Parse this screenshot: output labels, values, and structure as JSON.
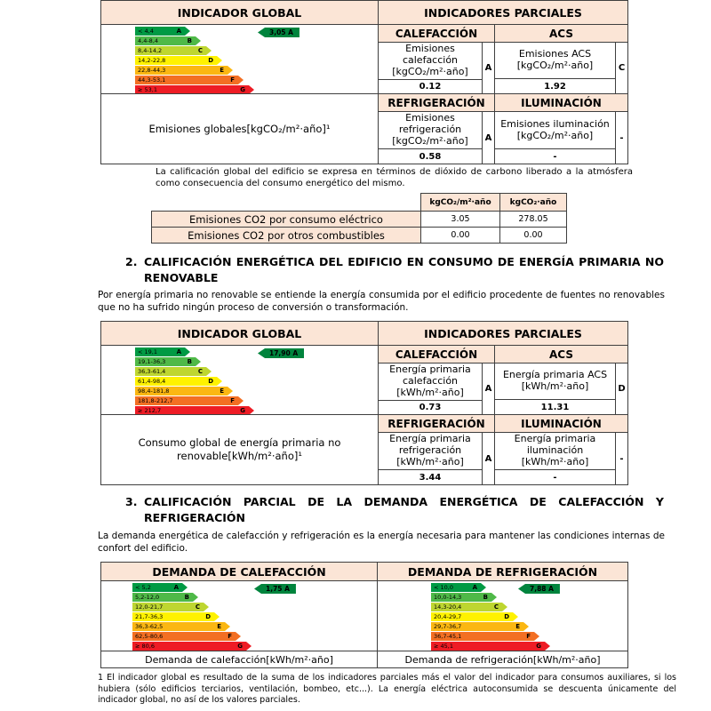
{
  "colors": {
    "header_bg": "#fbe5d6",
    "band_a": "#009a44",
    "band_b": "#4fb948",
    "band_c": "#bed630",
    "band_d": "#fff200",
    "band_e": "#fbb712",
    "band_f": "#f36f23",
    "band_g": "#ee1c25",
    "indicator_arrow": "#00843d",
    "border": "#3f3f3f"
  },
  "emissions": {
    "global_header": "INDICADOR GLOBAL",
    "partials_header": "INDICADORES PARCIALES",
    "indicator": "3,05 A",
    "scale": [
      {
        "range": "< 4,4",
        "letter": "A"
      },
      {
        "range": "4,4-8,4",
        "letter": "B"
      },
      {
        "range": "8,4-14,2",
        "letter": "C"
      },
      {
        "range": "14,2-22,8",
        "letter": "D"
      },
      {
        "range": "22,8-44,3",
        "letter": "E"
      },
      {
        "range": "44,3-53,1",
        "letter": "F"
      },
      {
        "range": "≥ 53,1",
        "letter": "G"
      }
    ],
    "partials": [
      {
        "header": "CALEFACCIÓN",
        "label": "Emisiones calefacción [kgCO₂/m²·año]",
        "letter": "A",
        "value": "0.12"
      },
      {
        "header": "ACS",
        "label": "Emisiones ACS [kgCO₂/m²·año]",
        "letter": "C",
        "value": "1.92"
      },
      {
        "header": "REFRIGERACIÓN",
        "label": "Emisiones refrigeración [kgCO₂/m²·año]",
        "letter": "A",
        "value": "0.58"
      },
      {
        "header": "ILUMINACIÓN",
        "label": "Emisiones iluminación [kgCO₂/m²·año]",
        "letter": "-",
        "value": "-"
      }
    ],
    "global_label": "Emisiones globales[kgCO₂/m²·año]¹",
    "note": "La calificación global del edificio se expresa en términos de dióxido de carbono liberado a la atmósfera como consecuencia del consumo energético del mismo.",
    "co2_table": {
      "col_headers": [
        "kgCO₂/m²·año",
        "kgCO₂·año"
      ],
      "rows": [
        {
          "label": "Emisiones CO2 por consumo eléctrico",
          "per_m2": "3.05",
          "per_year": "278.05"
        },
        {
          "label": "Emisiones CO2 por otros combustibles",
          "per_m2": "0.00",
          "per_year": "0.00"
        }
      ]
    }
  },
  "primary": {
    "section_number": "2.",
    "section_title": "CALIFICACIÓN ENERGÉTICA DEL EDIFICIO EN CONSUMO DE ENERGÍA PRIMARIA NO RENOVABLE",
    "intro": "Por energía primaria no renovable se entiende la energía consumida por el edificio procedente de fuentes no renovables que no ha sufrido ningún proceso de conversión o transformación.",
    "global_header": "INDICADOR GLOBAL",
    "partials_header": "INDICADORES PARCIALES",
    "indicator": "17,90 A",
    "scale": [
      {
        "range": "< 19,1",
        "letter": "A"
      },
      {
        "range": "19,1-36,3",
        "letter": "B"
      },
      {
        "range": "36,3-61,4",
        "letter": "C"
      },
      {
        "range": "61,4-98,4",
        "letter": "D"
      },
      {
        "range": "98,4-181,8",
        "letter": "E"
      },
      {
        "range": "181,8-212,7",
        "letter": "F"
      },
      {
        "range": "≥ 212,7",
        "letter": "G"
      }
    ],
    "partials": [
      {
        "header": "CALEFACCIÓN",
        "label": "Energía primaria calefacción [kWh/m²·año]",
        "letter": "A",
        "value": "0.73"
      },
      {
        "header": "ACS",
        "label": "Energía primaria ACS [kWh/m²·año]",
        "letter": "D",
        "value": "11.31"
      },
      {
        "header": "REFRIGERACIÓN",
        "label": "Energía primaria refrigeración [kWh/m²·año]",
        "letter": "A",
        "value": "3.44"
      },
      {
        "header": "ILUMINACIÓN",
        "label": "Energía primaria iluminación [kWh/m²·año]",
        "letter": "-",
        "value": "-"
      }
    ],
    "global_label": "Consumo global de energía primaria no renovable[kWh/m²·año]¹"
  },
  "demand": {
    "section_number": "3.",
    "section_title": "CALIFICACIÓN PARCIAL DE LA DEMANDA ENERGÉTICA DE CALEFACCIÓN Y REFRIGERACIÓN",
    "intro": "La demanda energética de calefacción y refrigeración es la energía necesaria para mantener las condiciones internas de confort del edificio.",
    "heating": {
      "header": "DEMANDA DE CALEFACCIÓN",
      "indicator": "1,75 A",
      "scale": [
        {
          "range": "< 5,2",
          "letter": "A"
        },
        {
          "range": "5,2-12,0",
          "letter": "B"
        },
        {
          "range": "12,0-21,7",
          "letter": "C"
        },
        {
          "range": "21,7-36,3",
          "letter": "D"
        },
        {
          "range": "36,3-62,5",
          "letter": "E"
        },
        {
          "range": "62,5-80,6",
          "letter": "F"
        },
        {
          "range": "≥ 80,6",
          "letter": "G"
        }
      ],
      "caption": "Demanda de calefacción[kWh/m²·año]"
    },
    "cooling": {
      "header": "DEMANDA DE REFRIGERACIÓN",
      "indicator": "7,88 A",
      "scale": [
        {
          "range": "< 10,0",
          "letter": "A"
        },
        {
          "range": "10,0-14,3",
          "letter": "B"
        },
        {
          "range": "14,3-20,4",
          "letter": "C"
        },
        {
          "range": "20,4-29,7",
          "letter": "D"
        },
        {
          "range": "29,7-36,7",
          "letter": "E"
        },
        {
          "range": "36,7-45,1",
          "letter": "F"
        },
        {
          "range": "≥ 45,1",
          "letter": "G"
        }
      ],
      "caption": "Demanda de refrigeración[kWh/m²·año]"
    }
  },
  "footnote": "1 El indicador global es resultado de la suma de los indicadores parciales más el valor del indicador para consumos auxiliares, si los hubiera (sólo edificios terciarios, ventilación, bombeo, etc...). La energía eléctrica autoconsumida se descuenta únicamente del indicador global, no así de los valores parciales."
}
